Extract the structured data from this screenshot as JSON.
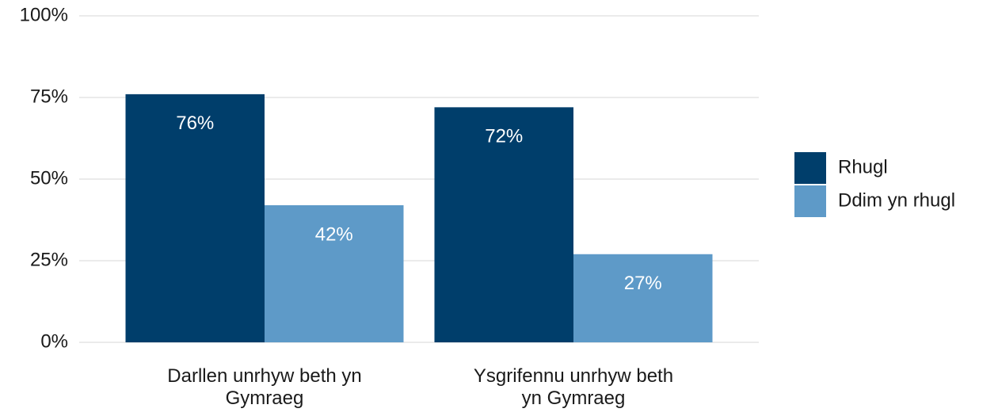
{
  "chart_data": {
    "type": "bar",
    "categories": [
      "Darllen unrhyw beth yn Gymraeg",
      "Ysgrifennu unrhyw beth yn Gymraeg"
    ],
    "series": [
      {
        "name": "Rhugl",
        "color": "#003e6b",
        "values": [
          76,
          72
        ],
        "value_labels": [
          "76%",
          "72%"
        ]
      },
      {
        "name": "Ddim yn rhugl",
        "color": "#5e9ac8",
        "values": [
          42,
          27
        ],
        "value_labels": [
          "42%",
          "27%"
        ]
      }
    ],
    "ylim": [
      0,
      100
    ],
    "yticks": [
      {
        "value": 0,
        "label": "0%"
      },
      {
        "value": 25,
        "label": "25%"
      },
      {
        "value": 50,
        "label": "50%"
      },
      {
        "value": 75,
        "label": "75%"
      },
      {
        "value": 100,
        "label": "100%"
      }
    ],
    "grid": true,
    "legend": "right"
  }
}
